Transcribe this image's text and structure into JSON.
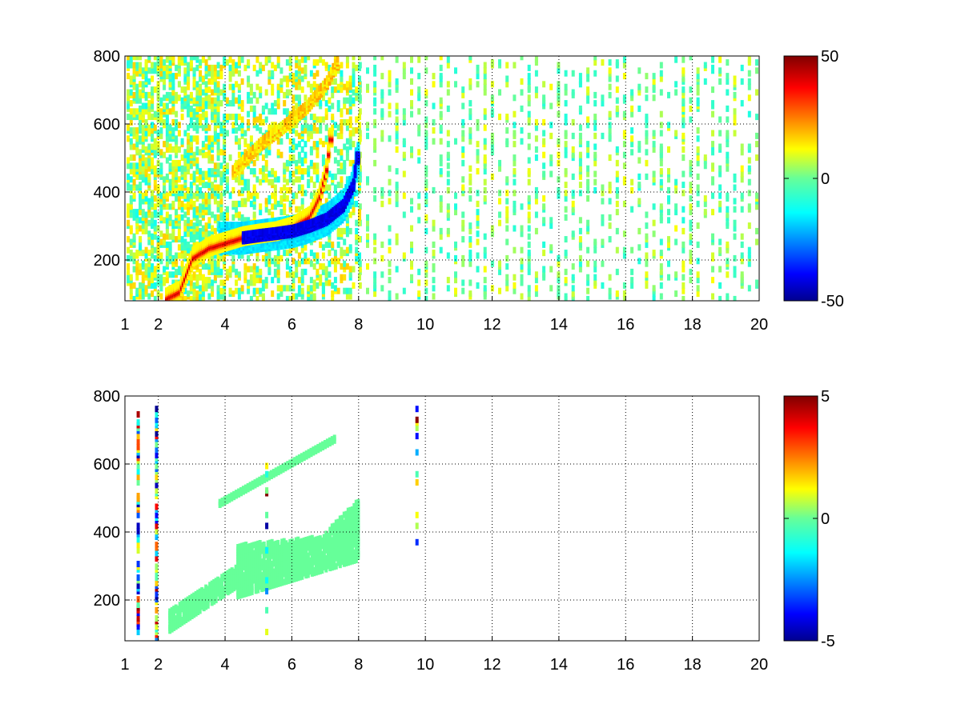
{
  "chart_data": [
    {
      "type": "heatmap",
      "title": "",
      "xlabel": "",
      "ylabel": "",
      "xlim": [
        1,
        20
      ],
      "ylim": [
        80,
        800
      ],
      "x_ticks": [
        1,
        2,
        4,
        6,
        8,
        10,
        12,
        14,
        16,
        18,
        20
      ],
      "x_tick_labels": [
        "1",
        "2",
        "4",
        "6",
        "8",
        "10",
        "12",
        "14",
        "16",
        "18",
        "20"
      ],
      "y_ticks": [
        200,
        400,
        600,
        800
      ],
      "y_tick_labels": [
        "200",
        "400",
        "600",
        "800"
      ],
      "grid": "dotted",
      "colormap": "jet",
      "clim": [
        -50,
        50
      ],
      "colorbar_ticks": [
        "50",
        "0",
        "-50"
      ],
      "features": {
        "dense_region_x_range": [
          1,
          8
        ],
        "sparse_noise_x_range": [
          8,
          20
        ],
        "upper_positive_ridge": [
          [
            4.2,
            460
          ],
          [
            5.0,
            540
          ],
          [
            5.8,
            600
          ],
          [
            6.4,
            650
          ],
          [
            7.0,
            720
          ],
          [
            7.3,
            780
          ]
        ],
        "main_positive_ridge": [
          [
            2.2,
            90
          ],
          [
            2.6,
            110
          ],
          [
            3.0,
            210
          ],
          [
            3.5,
            240
          ],
          [
            4.0,
            255
          ],
          [
            4.5,
            270
          ],
          [
            5.0,
            278
          ],
          [
            5.5,
            285
          ],
          [
            6.0,
            300
          ],
          [
            6.5,
            330
          ],
          [
            6.8,
            390
          ],
          [
            7.0,
            470
          ],
          [
            7.1,
            560
          ]
        ],
        "main_negative_ridge": [
          [
            4.5,
            265
          ],
          [
            5.0,
            272
          ],
          [
            5.5,
            278
          ],
          [
            6.0,
            285
          ],
          [
            6.5,
            300
          ],
          [
            7.0,
            320
          ],
          [
            7.5,
            360
          ],
          [
            7.8,
            420
          ],
          [
            7.9,
            500
          ]
        ]
      }
    },
    {
      "type": "heatmap",
      "title": "",
      "xlabel": "",
      "ylabel": "",
      "xlim": [
        1,
        20
      ],
      "ylim": [
        80,
        800
      ],
      "x_ticks": [
        1,
        2,
        4,
        6,
        8,
        10,
        12,
        14,
        16,
        18,
        20
      ],
      "x_tick_labels": [
        "1",
        "2",
        "4",
        "6",
        "8",
        "10",
        "12",
        "14",
        "16",
        "18",
        "20"
      ],
      "y_ticks": [
        200,
        400,
        600,
        800
      ],
      "y_tick_labels": [
        "200",
        "400",
        "600",
        "800"
      ],
      "grid": "dotted",
      "colormap": "jet",
      "clim": [
        -5,
        5
      ],
      "colorbar_ticks": [
        "5",
        "0",
        "-5"
      ],
      "features": {
        "near_zero_region_x_range": [
          2.2,
          8
        ],
        "outlier_columns_x": [
          1.35,
          1.9,
          5.2,
          9.7
        ]
      }
    }
  ]
}
